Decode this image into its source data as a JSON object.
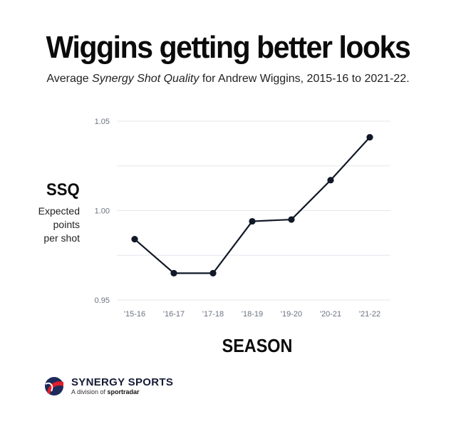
{
  "header": {
    "title": "Wiggins getting better looks",
    "subtitle_pre": "Average ",
    "subtitle_em": "Synergy Shot Quality",
    "subtitle_post": " for Andrew Wiggins, 2015-16 to 2021-22."
  },
  "axes": {
    "y_title": "SSQ",
    "y_subtitle": [
      "Expected",
      "points",
      "per shot"
    ],
    "x_title": "SEASON"
  },
  "branding": {
    "name": "SYNERGY SPORTS",
    "tagline_pre": "A division of ",
    "tagline_brand": "sportradar"
  },
  "colors": {
    "line": "#111827",
    "grid": "#e5e7eb",
    "logo_red": "#e11d2b",
    "logo_navy": "#1e2a5a"
  },
  "chart_data": {
    "type": "line",
    "title": "Wiggins getting better looks",
    "xlabel": "SEASON",
    "ylabel": "SSQ",
    "categories": [
      "'15-16",
      "'16-17",
      "'17-18",
      "'18-19",
      "'19-20",
      "'20-21",
      "'21-22"
    ],
    "values": [
      0.984,
      0.965,
      0.965,
      0.994,
      0.995,
      1.017,
      1.041
    ],
    "ylim": [
      0.95,
      1.05
    ],
    "yticks": [
      "0.95",
      "1.00",
      "1.05"
    ],
    "grid": true,
    "legend": "none"
  }
}
